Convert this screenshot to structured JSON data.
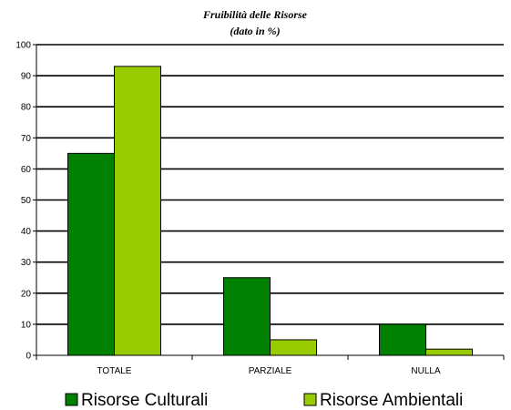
{
  "chart_data": {
    "type": "bar",
    "title": "Fruibilità delle Risorse",
    "subtitle": "(dato in %)",
    "xlabel": "",
    "ylabel": "",
    "categories": [
      "TOTALE",
      "PARZIALE",
      "NULLA"
    ],
    "series": [
      {
        "name": "Risorse Culturali",
        "values": [
          65,
          25,
          10
        ],
        "color": "#008000"
      },
      {
        "name": "Risorse Ambientali",
        "values": [
          93,
          5,
          2
        ],
        "color": "#99cc00"
      }
    ],
    "ylim": [
      0,
      100
    ],
    "yticks": [
      0,
      10,
      20,
      30,
      40,
      50,
      60,
      70,
      80,
      90,
      100
    ],
    "grid": true,
    "legend_position": "bottom"
  }
}
